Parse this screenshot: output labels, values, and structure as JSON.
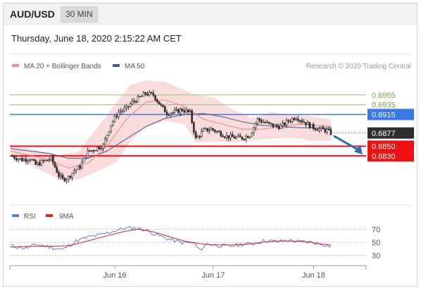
{
  "header": {
    "symbol": "AUD/USD",
    "timeframe": "30 MIN"
  },
  "datetime": "Thursday, June 18, 2020 2:15:22 AM CET",
  "legend": {
    "ma20_label": "MA 20 + Bollinger Bands",
    "ma50_label": "MA 50",
    "credit": "Research © 2020 Trading Central"
  },
  "rsi_legend": {
    "rsi_label": "RSI",
    "ma_label": "9MA"
  },
  "colors": {
    "bollinger": "#f8d0d0",
    "ma20": "#e98484",
    "ma50": "#3b5d97",
    "candle": "#2c2c2c",
    "resistance": "#95c16a",
    "pivot": "#3b78e7",
    "support": "#ee1111",
    "current": "#2e2e2e",
    "arrow": "#2f6db0",
    "rsi": "#5b7fd6",
    "rsi_ma": "#dd2222"
  },
  "chart_data": {
    "type": "candlestick",
    "price_range": [
      0.6738,
      0.6998
    ],
    "levels": [
      {
        "label": "0.6955",
        "value": 0.6955,
        "kind": "resistance"
      },
      {
        "label": "0.6935",
        "value": 0.6935,
        "kind": "resistance"
      },
      {
        "label": "0.6915",
        "value": 0.6915,
        "kind": "pivot"
      },
      {
        "label": "0.6877",
        "value": 0.6877,
        "kind": "current"
      },
      {
        "label": "0.6850",
        "value": 0.685,
        "kind": "support"
      },
      {
        "label": "0.6830",
        "value": 0.683,
        "kind": "support"
      }
    ],
    "price_path": [
      [
        0,
        0.683
      ],
      [
        6,
        0.6822
      ],
      [
        10,
        0.6825
      ],
      [
        13,
        0.6812
      ],
      [
        18,
        0.682
      ],
      [
        21,
        0.6825
      ],
      [
        25,
        0.679
      ],
      [
        27,
        0.6782
      ],
      [
        30,
        0.6786
      ],
      [
        33,
        0.68
      ],
      [
        36,
        0.6808
      ],
      [
        40,
        0.6838
      ],
      [
        44,
        0.6845
      ],
      [
        48,
        0.6852
      ],
      [
        52,
        0.6895
      ],
      [
        56,
        0.692
      ],
      [
        60,
        0.6927
      ],
      [
        63,
        0.694
      ],
      [
        66,
        0.6947
      ],
      [
        70,
        0.6958
      ],
      [
        74,
        0.6955
      ],
      [
        78,
        0.6932
      ],
      [
        81,
        0.6918
      ],
      [
        85,
        0.692
      ],
      [
        89,
        0.6925
      ],
      [
        93,
        0.6918
      ],
      [
        96,
        0.6865
      ],
      [
        100,
        0.6882
      ],
      [
        104,
        0.6885
      ],
      [
        108,
        0.6878
      ],
      [
        112,
        0.687
      ],
      [
        116,
        0.6868
      ],
      [
        120,
        0.6867
      ],
      [
        124,
        0.6873
      ],
      [
        128,
        0.6905
      ],
      [
        132,
        0.6898
      ],
      [
        136,
        0.6892
      ],
      [
        140,
        0.689
      ],
      [
        144,
        0.6902
      ],
      [
        148,
        0.691
      ],
      [
        152,
        0.69
      ],
      [
        156,
        0.689
      ],
      [
        160,
        0.6885
      ],
      [
        164,
        0.6882
      ],
      [
        166,
        0.6877
      ]
    ],
    "bollinger": {
      "upper": [
        [
          0,
          0.6852
        ],
        [
          25,
          0.6832
        ],
        [
          35,
          0.6838
        ],
        [
          45,
          0.6888
        ],
        [
          55,
          0.694
        ],
        [
          62,
          0.6975
        ],
        [
          70,
          0.6985
        ],
        [
          80,
          0.6982
        ],
        [
          90,
          0.6965
        ],
        [
          96,
          0.6955
        ],
        [
          105,
          0.695
        ],
        [
          115,
          0.6925
        ],
        [
          125,
          0.6908
        ],
        [
          135,
          0.692
        ],
        [
          145,
          0.6915
        ],
        [
          155,
          0.6912
        ],
        [
          166,
          0.6905
        ]
      ],
      "lower": [
        [
          0,
          0.6835
        ],
        [
          12,
          0.6808
        ],
        [
          25,
          0.6782
        ],
        [
          35,
          0.6782
        ],
        [
          45,
          0.6798
        ],
        [
          55,
          0.6818
        ],
        [
          62,
          0.686
        ],
        [
          70,
          0.6888
        ],
        [
          80,
          0.6902
        ],
        [
          90,
          0.6895
        ],
        [
          96,
          0.6858
        ],
        [
          105,
          0.686
        ],
        [
          115,
          0.6858
        ],
        [
          125,
          0.6862
        ],
        [
          135,
          0.6865
        ],
        [
          145,
          0.6868
        ],
        [
          155,
          0.6862
        ],
        [
          166,
          0.686
        ]
      ]
    },
    "ma20": [
      [
        0,
        0.684
      ],
      [
        20,
        0.6822
      ],
      [
        30,
        0.6805
      ],
      [
        40,
        0.6815
      ],
      [
        50,
        0.685
      ],
      [
        60,
        0.6905
      ],
      [
        70,
        0.694
      ],
      [
        80,
        0.6945
      ],
      [
        90,
        0.6932
      ],
      [
        100,
        0.6905
      ],
      [
        110,
        0.6895
      ],
      [
        120,
        0.6885
      ],
      [
        130,
        0.6885
      ],
      [
        140,
        0.689
      ],
      [
        150,
        0.6895
      ],
      [
        160,
        0.6892
      ],
      [
        166,
        0.689
      ]
    ],
    "ma50": [
      [
        0,
        0.6845
      ],
      [
        10,
        0.684
      ],
      [
        20,
        0.6835
      ],
      [
        30,
        0.6825
      ],
      [
        40,
        0.6825
      ],
      [
        50,
        0.684
      ],
      [
        60,
        0.6865
      ],
      [
        70,
        0.689
      ],
      [
        80,
        0.6907
      ],
      [
        90,
        0.6915
      ],
      [
        100,
        0.6917
      ],
      [
        110,
        0.691
      ],
      [
        120,
        0.69
      ],
      [
        130,
        0.6893
      ],
      [
        140,
        0.689
      ],
      [
        150,
        0.6888
      ],
      [
        160,
        0.6887
      ],
      [
        166,
        0.6887
      ]
    ],
    "projection": {
      "from": 0.6877,
      "to": 0.683
    },
    "x_ticks": [
      {
        "label": "Jun 16",
        "bar": 54
      },
      {
        "label": "Jun 17",
        "bar": 105
      },
      {
        "label": "Jun 18",
        "bar": 157
      }
    ],
    "rsi": {
      "range": [
        20,
        80
      ],
      "levels": [
        {
          "label": "70",
          "value": 70
        },
        {
          "label": "50",
          "value": 50
        },
        {
          "label": "30",
          "value": 30
        }
      ],
      "rsi_path": [
        [
          0,
          45
        ],
        [
          8,
          41
        ],
        [
          14,
          47
        ],
        [
          20,
          43
        ],
        [
          27,
          39
        ],
        [
          34,
          52
        ],
        [
          40,
          58
        ],
        [
          46,
          61
        ],
        [
          52,
          66
        ],
        [
          58,
          71
        ],
        [
          64,
          72
        ],
        [
          70,
          69
        ],
        [
          76,
          61
        ],
        [
          82,
          55
        ],
        [
          88,
          50
        ],
        [
          95,
          49
        ],
        [
          98,
          38
        ],
        [
          102,
          48
        ],
        [
          108,
          45
        ],
        [
          114,
          44
        ],
        [
          120,
          47
        ],
        [
          126,
          48
        ],
        [
          132,
          53
        ],
        [
          138,
          51
        ],
        [
          144,
          53
        ],
        [
          150,
          51
        ],
        [
          156,
          50
        ],
        [
          162,
          47
        ],
        [
          166,
          44
        ]
      ],
      "ma_path": [
        [
          0,
          43
        ],
        [
          10,
          44
        ],
        [
          20,
          44
        ],
        [
          30,
          45
        ],
        [
          40,
          52
        ],
        [
          50,
          60
        ],
        [
          58,
          66
        ],
        [
          66,
          70
        ],
        [
          74,
          66
        ],
        [
          82,
          59
        ],
        [
          90,
          52
        ],
        [
          98,
          48
        ],
        [
          106,
          46
        ],
        [
          114,
          46
        ],
        [
          122,
          47
        ],
        [
          130,
          50
        ],
        [
          138,
          52
        ],
        [
          146,
          52
        ],
        [
          154,
          51
        ],
        [
          160,
          48
        ],
        [
          166,
          46
        ]
      ]
    }
  }
}
